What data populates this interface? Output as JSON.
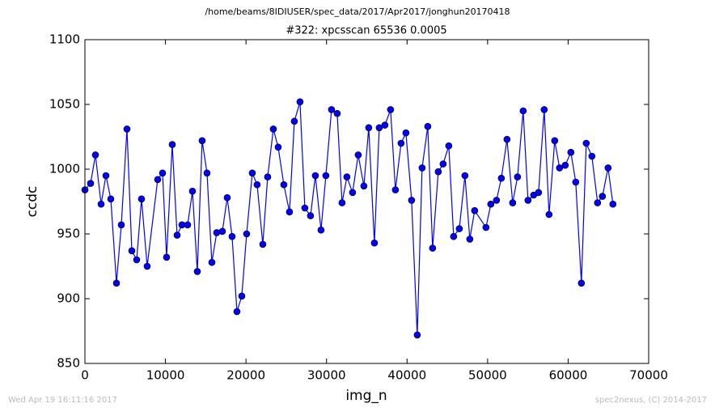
{
  "chart_data": {
    "type": "line",
    "suptitle": "/home/beams/8IDIUSER/spec_data/2017/Apr2017/jonghun20170418",
    "title": "#322: xpcsscan 65536 0.0005",
    "xlabel": "img_n",
    "ylabel": "ccdc",
    "footer_left": "Wed Apr 19 16:11:16 2017",
    "footer_right": "spec2nexus, (C) 2014-2017",
    "xlim": [
      0,
      70000
    ],
    "xticks": [
      0,
      10000,
      20000,
      30000,
      40000,
      50000,
      60000,
      70000
    ],
    "ylim": [
      850,
      1100
    ],
    "yticks": [
      850,
      900,
      950,
      1000,
      1050,
      1100
    ],
    "grid": false,
    "x": [
      0,
      703,
      1305,
      2008,
      2610,
      3213,
      3916,
      4518,
      5221,
      5823,
      6426,
      7028,
      7731,
      9036,
      9638,
      10140,
      10843,
      11446,
      12048,
      12751,
      13353,
      13956,
      14558,
      15160,
      15763,
      16365,
      17068,
      17670,
      18273,
      18875,
      19478,
      20080,
      20783,
      21385,
      22088,
      22690,
      23393,
      23996,
      24698,
      25401,
      26004,
      26706,
      27309,
      28012,
      28614,
      29317,
      29919,
      30622,
      31325,
      31927,
      32530,
      33232,
      33935,
      34638,
      35240,
      35943,
      36546,
      37248,
      37951,
      38554,
      39256,
      39859,
      40562,
      41264,
      41867,
      42570,
      43172,
      43875,
      44477,
      45180,
      45782,
      46485,
      47188,
      47790,
      48393,
      49798,
      50401,
      51104,
      51706,
      52409,
      53112,
      53714,
      54417,
      55019,
      55722,
      56324,
      57027,
      57630,
      58333,
      58935,
      59638,
      60341,
      60943,
      61646,
      62248,
      62951,
      63654,
      64256,
      64959,
      65561
    ],
    "series": [
      {
        "name": "ccdc",
        "color": "#0000ff",
        "values": [
          984,
          989,
          1011,
          973,
          995,
          977,
          912,
          957,
          1031,
          937,
          930,
          977,
          925,
          992,
          997,
          932,
          1019,
          949,
          957,
          957,
          983,
          921,
          1022,
          997,
          928,
          951,
          952,
          978,
          948,
          890,
          902,
          950,
          997,
          988,
          942,
          994,
          1031,
          1017,
          988,
          967,
          1037,
          1052,
          970,
          964,
          995,
          953,
          995,
          1046,
          1043,
          974,
          994,
          982,
          1011,
          987,
          1032,
          943,
          1032,
          1034,
          1046,
          984,
          1020,
          1028,
          976,
          872,
          1001,
          1033,
          939,
          998,
          1004,
          1018,
          948,
          954,
          995,
          946,
          968,
          955,
          973,
          976,
          993,
          1023,
          974,
          994,
          1045,
          976,
          980,
          982,
          1046,
          965,
          1022,
          1001,
          1003,
          1013,
          990,
          912,
          1020,
          1010,
          974,
          979,
          1001,
          973
        ]
      }
    ]
  }
}
